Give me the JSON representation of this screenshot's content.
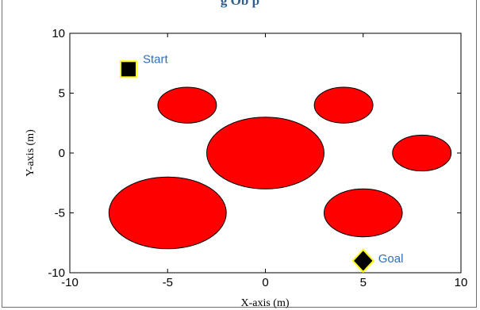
{
  "header": {
    "caption": "g Ob  p"
  },
  "chart_data": {
    "type": "scatter",
    "xlabel": "X-axis (m)",
    "ylabel": "Y-axis (m)",
    "xlim": [
      -10,
      10
    ],
    "ylim": [
      -10,
      10
    ],
    "xticks": [
      -10,
      -5,
      0,
      5,
      10
    ],
    "yticks": [
      -10,
      -5,
      0,
      5,
      10
    ],
    "grid": false,
    "obstacles": [
      {
        "shape": "ellipse",
        "cx": -4,
        "cy": 4,
        "rx": 1.5,
        "ry": 1.5,
        "color": "#ff0000"
      },
      {
        "shape": "ellipse",
        "cx": 4,
        "cy": 4,
        "rx": 1.5,
        "ry": 1.5,
        "color": "#ff0000"
      },
      {
        "shape": "ellipse",
        "cx": 0,
        "cy": 0,
        "rx": 3,
        "ry": 3,
        "color": "#ff0000"
      },
      {
        "shape": "ellipse",
        "cx": 8,
        "cy": 0,
        "rx": 1.5,
        "ry": 1.5,
        "color": "#ff0000"
      },
      {
        "shape": "ellipse",
        "cx": -5,
        "cy": -5,
        "rx": 3,
        "ry": 3,
        "color": "#ff0000"
      },
      {
        "shape": "ellipse",
        "cx": 5,
        "cy": -5,
        "rx": 2,
        "ry": 2,
        "color": "#ff0000"
      }
    ],
    "start": {
      "label": "Start",
      "x": -7,
      "y": 7,
      "marker": "square",
      "color": "#000000",
      "edge": "#ffff00"
    },
    "goal": {
      "label": "Goal",
      "x": 5,
      "y": -9,
      "marker": "diamond",
      "color": "#000000",
      "edge": "#ffff00"
    },
    "annotation_color": "#2a6fc0"
  }
}
